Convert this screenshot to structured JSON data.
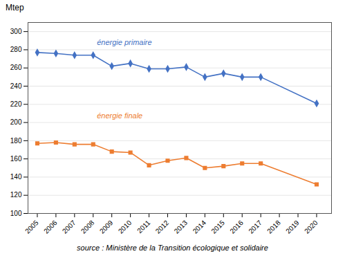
{
  "chart_data": {
    "type": "line",
    "ylabel": "Mtep",
    "source": "source : Ministère de la Transition écologique et solidaire",
    "x": [
      2005,
      2006,
      2007,
      2008,
      2009,
      2010,
      2011,
      2012,
      2013,
      2014,
      2015,
      2016,
      2017,
      2020
    ],
    "series": [
      {
        "name": "énergie primaire",
        "color": "#4472C4",
        "marker": "diamond",
        "values": [
          277,
          276,
          274,
          274,
          262,
          265,
          259,
          259,
          261,
          250,
          254,
          250,
          250,
          221
        ]
      },
      {
        "name": "énergie finale",
        "color": "#ED7D31",
        "marker": "square",
        "values": [
          177,
          178,
          176,
          176,
          168,
          167,
          153,
          158,
          161,
          150,
          152,
          155,
          155,
          132
        ]
      }
    ],
    "annotations": [
      {
        "text": "énergie primaire",
        "x": 2008.2,
        "y": 285,
        "color": "#4472C4"
      },
      {
        "text": "énergie finale",
        "x": 2008.2,
        "y": 205,
        "color": "#ED7D31"
      }
    ],
    "xlim": [
      2004.5,
      2020.8
    ],
    "xticks": [
      2005,
      2006,
      2007,
      2008,
      2009,
      2010,
      2011,
      2012,
      2013,
      2014,
      2015,
      2016,
      2017,
      2018,
      2019,
      2020
    ],
    "ylim": [
      100,
      310
    ],
    "yticks": [
      100,
      120,
      140,
      160,
      180,
      200,
      220,
      240,
      260,
      280,
      300
    ],
    "grid": true
  }
}
